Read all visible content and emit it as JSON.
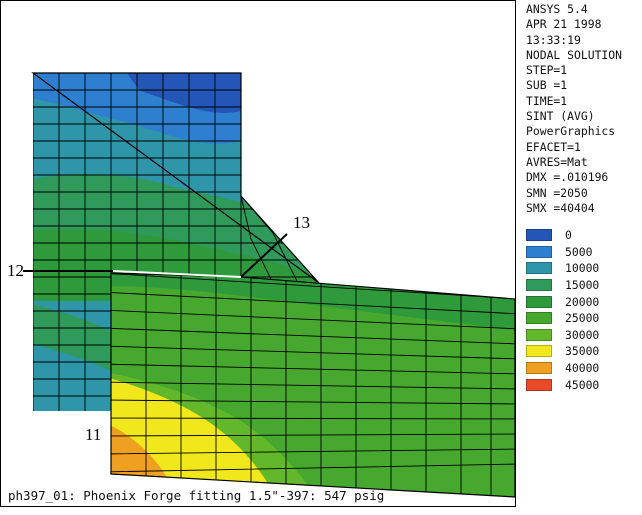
{
  "info_panel": {
    "lines": [
      "ANSYS 5.4",
      "APR 21 1998",
      "13:33:19",
      "NODAL SOLUTION",
      "STEP=1",
      "SUB =1",
      "TIME=1",
      "SINT      (AVG)",
      "PowerGraphics",
      "EFACET=1",
      "AVRES=Mat",
      "DMX =.010196",
      "SMN =2050",
      "SMX =40404"
    ]
  },
  "legend": [
    {
      "label": "0",
      "color": "#2456b8"
    },
    {
      "label": "5000",
      "color": "#2f7fd0"
    },
    {
      "label": "10000",
      "color": "#2f95a8"
    },
    {
      "label": "15000",
      "color": "#2f9a5a"
    },
    {
      "label": "20000",
      "color": "#2e9a3c"
    },
    {
      "label": "25000",
      "color": "#46a82e"
    },
    {
      "label": "30000",
      "color": "#62b82a"
    },
    {
      "label": "35000",
      "color": "#f0e81a"
    },
    {
      "label": "40000",
      "color": "#f0a020"
    },
    {
      "label": "45000",
      "color": "#e84a2a"
    }
  ],
  "annotations": {
    "node_12": "12",
    "node_13": "13",
    "node_11": "11"
  },
  "caption": "ph397_01: Phoenix Forge fitting 1.5\"-397: 547 psig"
}
